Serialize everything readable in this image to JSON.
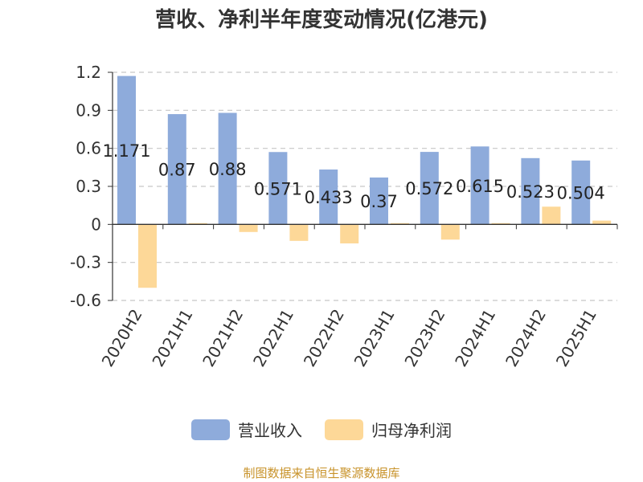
{
  "chart_data": {
    "type": "bar",
    "title": "营收、净利半年度变动情况(亿港元)",
    "categories": [
      "2020H2",
      "2021H1",
      "2021H2",
      "2022H1",
      "2022H2",
      "2023H1",
      "2023H2",
      "2024H1",
      "2024H2",
      "2025H1"
    ],
    "series": [
      {
        "name": "营业收入",
        "color": "#8eabdb",
        "values": [
          1.171,
          0.87,
          0.88,
          0.571,
          0.433,
          0.37,
          0.572,
          0.615,
          0.523,
          0.504
        ],
        "labels": [
          "1.171",
          "0.87",
          "0.88",
          "0.571",
          "0.433",
          "0.37",
          "0.572",
          "0.615",
          "0.523",
          "0.504"
        ]
      },
      {
        "name": "归母净利润",
        "color": "#fdd898",
        "values": [
          -0.5,
          0.01,
          -0.06,
          -0.13,
          -0.15,
          0.01,
          -0.12,
          0.01,
          0.14,
          0.03
        ]
      }
    ],
    "ylim": [
      -0.6,
      1.2
    ],
    "yticks": [
      "1.2",
      "0.9",
      "0.6",
      "0.3",
      "0",
      "-0.3",
      "-0.6"
    ],
    "grid": true,
    "legend_position": "bottom"
  },
  "source_note": "制图数据来自恒生聚源数据库"
}
